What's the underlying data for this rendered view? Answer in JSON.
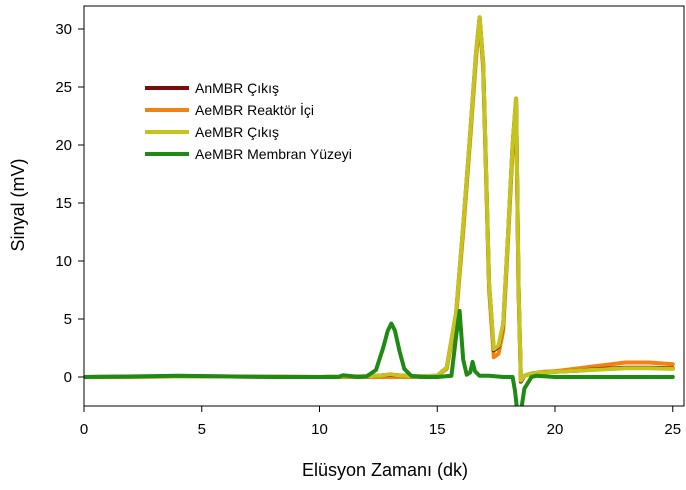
{
  "chart_data": {
    "type": "line",
    "title": "",
    "xlabel": "Elüsyon Zamanı (dk)",
    "ylabel": "Sinyal (mV)",
    "xlim": [
      0,
      25.5
    ],
    "ylim": [
      -3,
      32
    ],
    "xticks": [
      0,
      5,
      10,
      15,
      20,
      25
    ],
    "yticks": [
      0,
      5,
      10,
      15,
      20,
      25,
      30
    ],
    "grid": false,
    "legend_position": "upper-left",
    "series": [
      {
        "name": "AnMBR Çıkış",
        "color": "#7a0e0e",
        "x": [
          0,
          5,
          10,
          11,
          12,
          12.7,
          13.0,
          13.3,
          14,
          15,
          15.4,
          15.8,
          16.1,
          16.4,
          16.65,
          16.8,
          16.95,
          17.2,
          17.4,
          17.6,
          17.8,
          18.0,
          18.2,
          18.35,
          18.45,
          18.55,
          18.7,
          19.0,
          19.5,
          20,
          21,
          22,
          23,
          24,
          25
        ],
        "y": [
          0,
          0.05,
          0.0,
          0.05,
          0.05,
          0.15,
          0.2,
          0.15,
          0.05,
          0.1,
          0.8,
          5.5,
          13,
          21,
          28,
          31,
          27,
          8,
          2.3,
          2.6,
          4.5,
          12,
          20,
          24,
          8,
          -0.4,
          0.1,
          0.3,
          0.4,
          0.45,
          0.55,
          0.7,
          0.8,
          0.8,
          0.75
        ]
      },
      {
        "name": "AeMBR Reaktör İçi",
        "color": "#f5820f",
        "x": [
          0,
          5,
          10,
          11,
          12,
          12.7,
          13.0,
          13.3,
          14,
          15,
          15.4,
          15.8,
          16.1,
          16.4,
          16.65,
          16.8,
          16.95,
          17.2,
          17.4,
          17.6,
          17.8,
          18.0,
          18.2,
          18.35,
          18.45,
          18.55,
          18.7,
          19.0,
          19.5,
          20,
          21,
          22,
          23,
          24,
          25
        ],
        "y": [
          0,
          0.05,
          0.0,
          0.0,
          0.0,
          0.0,
          0.0,
          0.0,
          0.0,
          0.1,
          0.7,
          5.2,
          12.5,
          20.5,
          27.5,
          30.8,
          26.5,
          7.5,
          1.7,
          2.0,
          4.0,
          11.5,
          19.5,
          23.5,
          7.5,
          -0.4,
          0.1,
          0.3,
          0.45,
          0.5,
          0.75,
          1.0,
          1.25,
          1.25,
          1.1
        ]
      },
      {
        "name": "AeMBR Çıkış",
        "color": "#c5c41c",
        "x": [
          0,
          5,
          10,
          11,
          12,
          12.7,
          13.0,
          13.3,
          14,
          15,
          15.4,
          15.8,
          16.1,
          16.4,
          16.65,
          16.8,
          16.95,
          17.2,
          17.4,
          17.6,
          17.8,
          18.0,
          18.2,
          18.35,
          18.45,
          18.55,
          18.7,
          19.0,
          19.5,
          20,
          21,
          22,
          23,
          24,
          25
        ],
        "y": [
          0,
          0.05,
          0.0,
          0.05,
          0.05,
          0.15,
          0.25,
          0.15,
          0.05,
          0.1,
          0.8,
          5.5,
          13,
          21,
          28,
          31,
          27,
          8,
          2.4,
          2.7,
          4.6,
          12,
          20,
          24,
          8,
          -0.3,
          0.1,
          0.3,
          0.4,
          0.45,
          0.55,
          0.65,
          0.75,
          0.75,
          0.7
        ]
      },
      {
        "name": "AeMBR Membran Yüzeyi",
        "color": "#1f8a14",
        "x": [
          0,
          4,
          8,
          10,
          10.8,
          11.0,
          11.2,
          11.6,
          12.0,
          12.4,
          12.7,
          12.9,
          13.05,
          13.2,
          13.4,
          13.6,
          13.9,
          14.3,
          15.0,
          15.6,
          15.8,
          15.95,
          16.1,
          16.25,
          16.4,
          16.5,
          16.6,
          16.8,
          17.2,
          17.8,
          18.2,
          18.3,
          18.4,
          18.55,
          18.7,
          19.0,
          19.2,
          19.6,
          20,
          22,
          25
        ],
        "y": [
          0,
          0.1,
          0.0,
          0.0,
          0.0,
          0.15,
          0.1,
          0.0,
          0.05,
          0.6,
          2.5,
          4.0,
          4.6,
          4.0,
          2.2,
          0.7,
          0.1,
          0.0,
          0.0,
          0.1,
          3.5,
          5.7,
          1.5,
          0.2,
          0.4,
          1.3,
          0.5,
          0.1,
          0.1,
          0.0,
          0.0,
          -1.2,
          -3.0,
          -3.0,
          -1.0,
          0.0,
          0.1,
          0.05,
          0.0,
          0.0,
          0.0
        ]
      }
    ]
  }
}
